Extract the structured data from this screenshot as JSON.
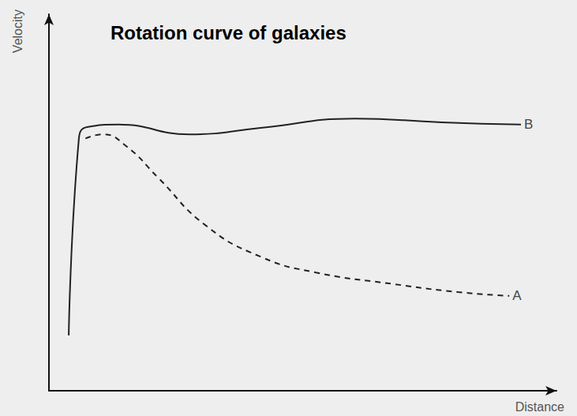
{
  "chart_data": {
    "type": "line",
    "title": "Rotation curve of galaxies",
    "x_label": "Distance",
    "y_label": "Velocity",
    "xlim": [
      0,
      10
    ],
    "ylim": [
      0,
      10
    ],
    "tick_labels": false,
    "grid": false,
    "series": [
      {
        "name": "B",
        "color": "#222222",
        "line_style": "solid",
        "x": [
          0.39,
          0.59,
          0.75,
          1.37,
          2.77,
          4.17,
          6.03,
          7.74,
          9.3
        ],
        "values": [
          1.47,
          6.7,
          7.0,
          7.07,
          6.81,
          6.98,
          7.23,
          7.13,
          7.07
        ]
      },
      {
        "name": "A",
        "color": "#222222",
        "line_style": "dashed",
        "x": [
          0.72,
          1.06,
          1.52,
          2.15,
          3.08,
          4.17,
          5.26,
          6.81,
          8.06,
          9.07
        ],
        "values": [
          6.7,
          6.81,
          6.5,
          5.66,
          4.4,
          3.56,
          3.14,
          2.83,
          2.62,
          2.52
        ]
      }
    ]
  }
}
